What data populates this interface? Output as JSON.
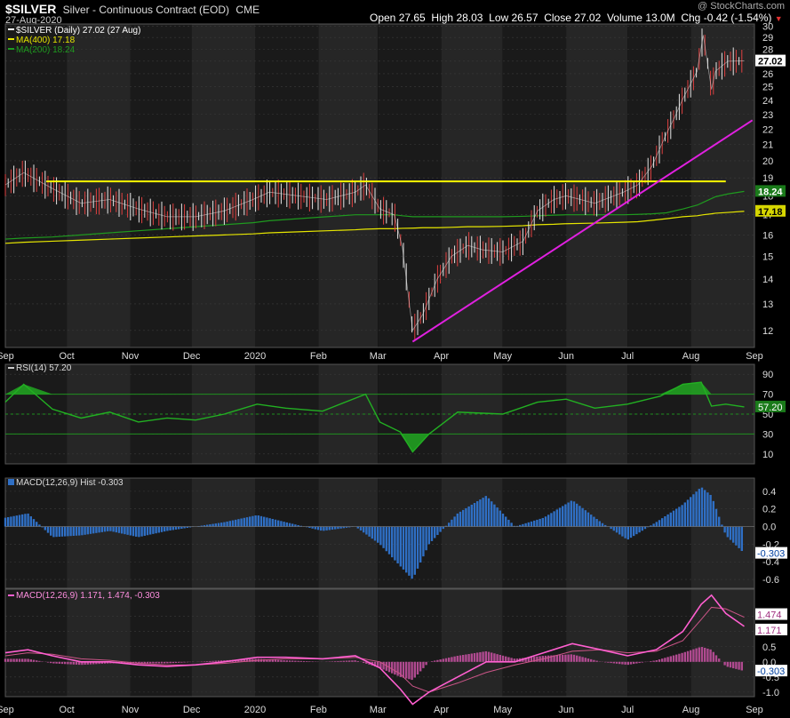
{
  "header": {
    "symbol": "$SILVER",
    "description": "Silver - Continuous Contract (EOD)",
    "exchange": "CME",
    "date": "27-Aug-2020",
    "watermark": "@ StockCharts.com",
    "open_label": "Open",
    "open": "27.65",
    "high_label": "High",
    "high": "28.03",
    "low_label": "Low",
    "low": "26.57",
    "close_label": "Close",
    "close": "27.02",
    "volume_label": "Volume",
    "volume": "13.0M",
    "chg_label": "Chg",
    "chg": "-0.42 (-1.54%)"
  },
  "colors": {
    "background": "#000000",
    "band_dark": "#1a1a1a",
    "band_light": "#262626",
    "price": "#e6e6e6",
    "ma400": "#e6e600",
    "ma200": "#1f9a1f",
    "resistance": "#ffff00",
    "trendline": "#e020e0",
    "rsi": "#22b022",
    "macd_hist": "#2f6fc4",
    "macd_line": "#ff5fd0",
    "macd_signal": "#cc5588"
  },
  "chart_data": [
    {
      "type": "line",
      "panel": "price",
      "legend": [
        {
          "name": "$SILVER (Daily) 27.02 (27 Aug)"
        },
        {
          "name": "MA(400) 17.18"
        },
        {
          "name": "MA(200) 18.24"
        }
      ],
      "x": [
        "2019-09-01",
        "2019-09-10",
        "2019-09-24",
        "2019-10-08",
        "2019-10-22",
        "2019-11-05",
        "2019-11-19",
        "2019-12-03",
        "2019-12-17",
        "2019-12-31",
        "2020-01-08",
        "2020-01-22",
        "2020-02-05",
        "2020-02-19",
        "2020-02-24",
        "2020-03-02",
        "2020-03-09",
        "2020-03-13",
        "2020-03-18",
        "2020-03-23",
        "2020-03-30",
        "2020-04-06",
        "2020-04-14",
        "2020-04-21",
        "2020-05-01",
        "2020-05-11",
        "2020-05-18",
        "2020-05-26",
        "2020-06-01",
        "2020-06-15",
        "2020-06-29",
        "2020-07-06",
        "2020-07-13",
        "2020-07-20",
        "2020-07-24",
        "2020-07-28",
        "2020-08-04",
        "2020-08-07",
        "2020-08-11",
        "2020-08-13",
        "2020-08-19",
        "2020-08-27"
      ],
      "series": [
        {
          "name": "$SILVER",
          "values": [
            18.6,
            19.3,
            18.4,
            17.6,
            17.8,
            17.3,
            16.9,
            16.9,
            17.2,
            17.8,
            18.2,
            18.0,
            17.8,
            18.2,
            18.6,
            17.3,
            17.0,
            15.4,
            12.0,
            12.6,
            14.0,
            15.0,
            15.5,
            15.3,
            15.2,
            15.7,
            17.2,
            17.8,
            18.0,
            17.6,
            18.2,
            18.6,
            19.7,
            21.7,
            22.8,
            24.1,
            26.2,
            29.2,
            24.8,
            26.2,
            27.0,
            27.02
          ]
        },
        {
          "name": "MA(400)",
          "values": [
            15.6,
            15.65,
            15.7,
            15.75,
            15.8,
            15.85,
            15.9,
            15.95,
            16.0,
            16.05,
            16.1,
            16.15,
            16.2,
            16.25,
            16.28,
            16.3,
            16.3,
            16.32,
            16.33,
            16.35,
            16.35,
            16.37,
            16.4,
            16.4,
            16.42,
            16.45,
            16.5,
            16.52,
            16.55,
            16.58,
            16.62,
            16.65,
            16.72,
            16.8,
            16.85,
            16.9,
            16.95,
            17.0,
            17.05,
            17.08,
            17.12,
            17.18
          ]
        },
        {
          "name": "MA(200)",
          "values": [
            15.8,
            15.85,
            15.9,
            16.0,
            16.1,
            16.2,
            16.3,
            16.4,
            16.5,
            16.6,
            16.7,
            16.8,
            16.9,
            17.0,
            17.0,
            17.0,
            17.0,
            16.95,
            16.9,
            16.9,
            16.9,
            16.9,
            16.9,
            16.9,
            16.9,
            16.92,
            16.95,
            16.98,
            17.0,
            17.0,
            17.0,
            17.02,
            17.05,
            17.1,
            17.2,
            17.3,
            17.5,
            17.65,
            17.85,
            17.95,
            18.1,
            18.24
          ]
        }
      ],
      "annotations": [
        {
          "name": "resistance",
          "x": [
            "2019-09-21",
            "2020-08-18"
          ],
          "y": [
            18.8,
            18.8
          ]
        },
        {
          "name": "trendline",
          "x": [
            "2020-03-18",
            "2020-08-31"
          ],
          "y": [
            11.6,
            22.6
          ]
        }
      ],
      "last_value_labels": [
        "27.02",
        "18.24",
        "17.18"
      ],
      "xlabels": [
        "Sep",
        "Oct",
        "Nov",
        "Dec",
        "2020",
        "Feb",
        "Mar",
        "Apr",
        "May",
        "Jun",
        "Jul",
        "Aug",
        "Sep"
      ],
      "yticks": [
        12,
        13,
        14,
        15,
        16,
        17,
        18,
        19,
        20,
        21,
        22,
        23,
        24,
        25,
        26,
        27,
        28,
        29,
        30
      ],
      "ylim": [
        11.4,
        30.2
      ],
      "ylog": true,
      "grid": true
    },
    {
      "type": "line",
      "panel": "rsi",
      "legend": [
        {
          "name": "RSI(14) 57.20"
        }
      ],
      "x": [
        "2019-09-01",
        "2019-09-10",
        "2019-09-24",
        "2019-10-08",
        "2019-10-22",
        "2019-11-05",
        "2019-11-19",
        "2019-12-03",
        "2019-12-17",
        "2020-01-02",
        "2020-01-16",
        "2020-02-03",
        "2020-02-24",
        "2020-03-02",
        "2020-03-12",
        "2020-03-18",
        "2020-03-26",
        "2020-04-09",
        "2020-05-01",
        "2020-05-18",
        "2020-06-01",
        "2020-06-15",
        "2020-07-01",
        "2020-07-17",
        "2020-07-28",
        "2020-08-06",
        "2020-08-11",
        "2020-08-18",
        "2020-08-27"
      ],
      "series": [
        {
          "name": "RSI",
          "values": [
            62,
            80,
            55,
            46,
            52,
            42,
            46,
            44,
            50,
            60,
            56,
            53,
            70,
            42,
            32,
            12,
            30,
            52,
            50,
            62,
            65,
            56,
            60,
            68,
            80,
            82,
            58,
            60,
            57.2
          ]
        }
      ],
      "reference_lines": [
        30,
        50,
        70
      ],
      "last_value_labels": [
        "57.20"
      ],
      "yticks": [
        10,
        30,
        50,
        70,
        90
      ],
      "ylim": [
        0,
        100
      ],
      "grid": true
    },
    {
      "type": "bar",
      "panel": "macd_hist",
      "legend": [
        {
          "name": "MACD(12,26,9) Hist -0.303"
        }
      ],
      "x": [
        "2019-09-01",
        "2019-09-12",
        "2019-09-24",
        "2019-10-08",
        "2019-10-22",
        "2019-11-05",
        "2019-11-19",
        "2019-12-03",
        "2019-12-17",
        "2020-01-02",
        "2020-01-16",
        "2020-02-03",
        "2020-02-19",
        "2020-03-02",
        "2020-03-12",
        "2020-03-18",
        "2020-03-26",
        "2020-04-09",
        "2020-04-23",
        "2020-05-07",
        "2020-05-21",
        "2020-06-04",
        "2020-06-18",
        "2020-07-01",
        "2020-07-15",
        "2020-07-28",
        "2020-08-06",
        "2020-08-11",
        "2020-08-18",
        "2020-08-27"
      ],
      "values": [
        0.1,
        0.15,
        -0.12,
        -0.1,
        -0.05,
        -0.12,
        -0.05,
        0.0,
        0.05,
        0.13,
        0.05,
        -0.05,
        0.0,
        -0.2,
        -0.45,
        -0.6,
        -0.2,
        0.15,
        0.35,
        0.0,
        0.1,
        0.3,
        0.05,
        -0.15,
        0.05,
        0.25,
        0.45,
        0.35,
        -0.1,
        -0.303
      ],
      "last_value_labels": [
        "-0.303"
      ],
      "yticks": [
        -0.6,
        -0.4,
        -0.2,
        0.0,
        0.2,
        0.4
      ],
      "ylim": [
        -0.7,
        0.55
      ],
      "grid": true
    },
    {
      "type": "line",
      "panel": "macd",
      "legend": [
        {
          "name": "MACD(12,26,9) 1.171, 1.474, -0.303"
        }
      ],
      "x": [
        "2019-09-01",
        "2019-09-12",
        "2019-09-24",
        "2019-10-08",
        "2019-10-22",
        "2019-11-05",
        "2019-11-19",
        "2019-12-03",
        "2019-12-17",
        "2020-01-02",
        "2020-01-16",
        "2020-02-03",
        "2020-02-19",
        "2020-03-02",
        "2020-03-12",
        "2020-03-18",
        "2020-03-26",
        "2020-04-09",
        "2020-04-23",
        "2020-05-07",
        "2020-05-21",
        "2020-06-04",
        "2020-06-18",
        "2020-07-01",
        "2020-07-15",
        "2020-07-28",
        "2020-08-06",
        "2020-08-11",
        "2020-08-18",
        "2020-08-27"
      ],
      "series": [
        {
          "name": "MACD",
          "values": [
            0.3,
            0.4,
            0.2,
            0.0,
            0.0,
            -0.1,
            -0.15,
            -0.1,
            0.0,
            0.15,
            0.15,
            0.1,
            0.2,
            -0.2,
            -0.9,
            -1.4,
            -1.0,
            -0.5,
            0.0,
            0.0,
            0.3,
            0.6,
            0.4,
            0.2,
            0.4,
            1.0,
            1.9,
            2.2,
            1.6,
            1.171
          ]
        },
        {
          "name": "Signal",
          "values": [
            0.2,
            0.3,
            0.25,
            0.1,
            0.05,
            -0.05,
            -0.1,
            -0.1,
            -0.05,
            0.05,
            0.1,
            0.1,
            0.15,
            0.0,
            -0.4,
            -0.8,
            -1.0,
            -0.7,
            -0.35,
            -0.1,
            0.1,
            0.35,
            0.4,
            0.3,
            0.35,
            0.7,
            1.4,
            1.8,
            1.75,
            1.474
          ]
        }
      ],
      "last_value_labels": [
        "1.474",
        "1.171",
        "-0.303"
      ],
      "yticks": [
        -1.0,
        -0.5,
        0.0,
        0.5,
        1.0,
        1.5
      ],
      "ylim": [
        -1.15,
        2.4
      ],
      "grid": true
    }
  ]
}
